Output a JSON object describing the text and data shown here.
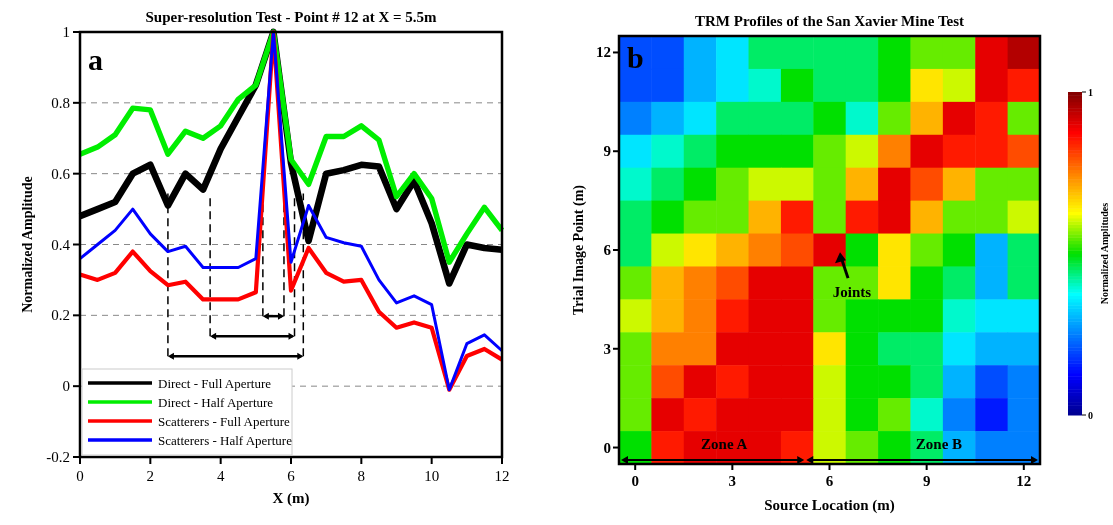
{
  "chart_data": [
    {
      "type": "line",
      "title": "Super-resolution Test - Point # 12 at X = 5.5m",
      "xlabel": "X (m)",
      "ylabel": "Normalized Amplitude",
      "x": [
        0,
        0.5,
        1,
        1.5,
        2,
        2.5,
        3,
        3.5,
        4,
        4.5,
        5,
        5.5,
        6,
        6.5,
        7,
        7.5,
        8,
        8.5,
        9,
        9.5,
        10,
        10.5,
        11,
        11.5,
        12
      ],
      "series": [
        {
          "name": "Direct - Full Aperture",
          "color": "#000000",
          "values": [
            0.48,
            0.5,
            0.52,
            0.6,
            0.625,
            0.51,
            0.6,
            0.555,
            0.67,
            0.76,
            0.85,
            1.0,
            0.63,
            0.41,
            0.6,
            0.61,
            0.625,
            0.62,
            0.5,
            0.58,
            0.46,
            0.29,
            0.4,
            0.39,
            0.385
          ]
        },
        {
          "name": "Direct - Half Aperture",
          "color": "#00ee00",
          "values": [
            0.655,
            0.675,
            0.71,
            0.785,
            0.78,
            0.655,
            0.72,
            0.7,
            0.735,
            0.81,
            0.85,
            1.0,
            0.64,
            0.57,
            0.705,
            0.705,
            0.735,
            0.695,
            0.535,
            0.6,
            0.53,
            0.35,
            0.43,
            0.505,
            0.44
          ]
        },
        {
          "name": "Scatterers - Full Aperture",
          "color": "#ff0000",
          "values": [
            0.315,
            0.3,
            0.32,
            0.38,
            0.325,
            0.285,
            0.295,
            0.245,
            0.245,
            0.245,
            0.265,
            1.0,
            0.27,
            0.39,
            0.32,
            0.295,
            0.3,
            0.21,
            0.165,
            0.18,
            0.165,
            -0.01,
            0.085,
            0.105,
            0.075
          ]
        },
        {
          "name": "Scatterers - Half Aperture",
          "color": "#0000ff",
          "values": [
            0.36,
            0.4,
            0.44,
            0.5,
            0.43,
            0.38,
            0.395,
            0.335,
            0.335,
            0.335,
            0.36,
            1.0,
            0.35,
            0.51,
            0.42,
            0.405,
            0.395,
            0.3,
            0.235,
            0.255,
            0.23,
            -0.01,
            0.12,
            0.145,
            0.1
          ]
        }
      ],
      "xlim": [
        0,
        12
      ],
      "xticks": [
        0,
        2,
        4,
        6,
        8,
        10,
        12
      ],
      "ylim": [
        -0.2,
        1
      ],
      "yticks": [
        -0.2,
        0,
        0.2,
        0.4,
        0.6,
        0.8,
        1
      ],
      "grid": "y",
      "legend": "bottom left",
      "marker": "none",
      "line_style": "solid",
      "ref_lines": [
        {
          "axis": "x",
          "value": 2.5,
          "line_style": "dashed"
        },
        {
          "axis": "x",
          "value": 3.7,
          "line_style": "dashed"
        },
        {
          "axis": "x",
          "value": 5.2,
          "line_style": "dashed"
        },
        {
          "axis": "x",
          "value": 5.8,
          "line_style": "dashed"
        },
        {
          "axis": "x",
          "value": 6.1,
          "line_style": "dashed"
        },
        {
          "axis": "x",
          "value": 6.35,
          "line_style": "dashed"
        }
      ],
      "annotations": [
        "a"
      ]
    },
    {
      "type": "heatmap",
      "title": "TRM Profiles of the San Xavier Mine Test",
      "xlabel": "Source Location (m)",
      "ylabel": "Trial Image Point (m)",
      "clabel": "Normalized Amplitudes",
      "categories": [
        "0",
        null,
        null,
        "3",
        null,
        null,
        "6",
        null,
        null,
        "9",
        null,
        null,
        "12"
      ],
      "y_categories": [
        "12",
        null,
        null,
        "9",
        null,
        null,
        "6",
        null,
        null,
        "3",
        null,
        null,
        "0"
      ],
      "clim": [
        0,
        1
      ],
      "cticks": [
        0,
        1
      ],
      "cells": [
        [
          0.2,
          0.2,
          0.3,
          0.35,
          0.45,
          0.45,
          0.45,
          0.45,
          0.5,
          0.55,
          0.55,
          0.9,
          0.95
        ],
        [
          0.2,
          0.2,
          0.3,
          0.35,
          0.4,
          0.5,
          0.45,
          0.45,
          0.5,
          0.65,
          0.6,
          0.9,
          0.85
        ],
        [
          0.25,
          0.3,
          0.35,
          0.45,
          0.45,
          0.45,
          0.5,
          0.4,
          0.55,
          0.7,
          0.9,
          0.85,
          0.55
        ],
        [
          0.35,
          0.4,
          0.45,
          0.5,
          0.5,
          0.5,
          0.55,
          0.6,
          0.75,
          0.9,
          0.85,
          0.85,
          0.8
        ],
        [
          0.4,
          0.45,
          0.5,
          0.55,
          0.6,
          0.6,
          0.55,
          0.7,
          0.9,
          0.8,
          0.7,
          0.55,
          0.55
        ],
        [
          0.45,
          0.5,
          0.55,
          0.55,
          0.7,
          0.85,
          0.55,
          0.85,
          0.9,
          0.7,
          0.55,
          0.55,
          0.6
        ],
        [
          0.45,
          0.6,
          0.65,
          0.7,
          0.75,
          0.8,
          0.9,
          0.5,
          0.65,
          0.55,
          0.5,
          0.3,
          0.45
        ],
        [
          0.55,
          0.7,
          0.75,
          0.8,
          0.9,
          0.9,
          0.55,
          0.55,
          0.65,
          0.5,
          0.45,
          0.3,
          0.45
        ],
        [
          0.6,
          0.7,
          0.75,
          0.85,
          0.9,
          0.9,
          0.55,
          0.5,
          0.5,
          0.5,
          0.4,
          0.35,
          0.35
        ],
        [
          0.55,
          0.75,
          0.75,
          0.9,
          0.9,
          0.9,
          0.65,
          0.5,
          0.45,
          0.45,
          0.35,
          0.3,
          0.3
        ],
        [
          0.55,
          0.8,
          0.9,
          0.85,
          0.9,
          0.9,
          0.6,
          0.5,
          0.5,
          0.45,
          0.3,
          0.2,
          0.25
        ],
        [
          0.55,
          0.9,
          0.85,
          0.9,
          0.9,
          0.9,
          0.6,
          0.5,
          0.55,
          0.4,
          0.25,
          0.15,
          0.25
        ],
        [
          0.5,
          0.85,
          0.9,
          0.9,
          0.9,
          0.85,
          0.6,
          0.55,
          0.5,
          0.45,
          0.3,
          0.25,
          0.25
        ]
      ],
      "annotations": [
        "b",
        "Joints",
        "Zone A",
        "Zone B"
      ]
    }
  ]
}
